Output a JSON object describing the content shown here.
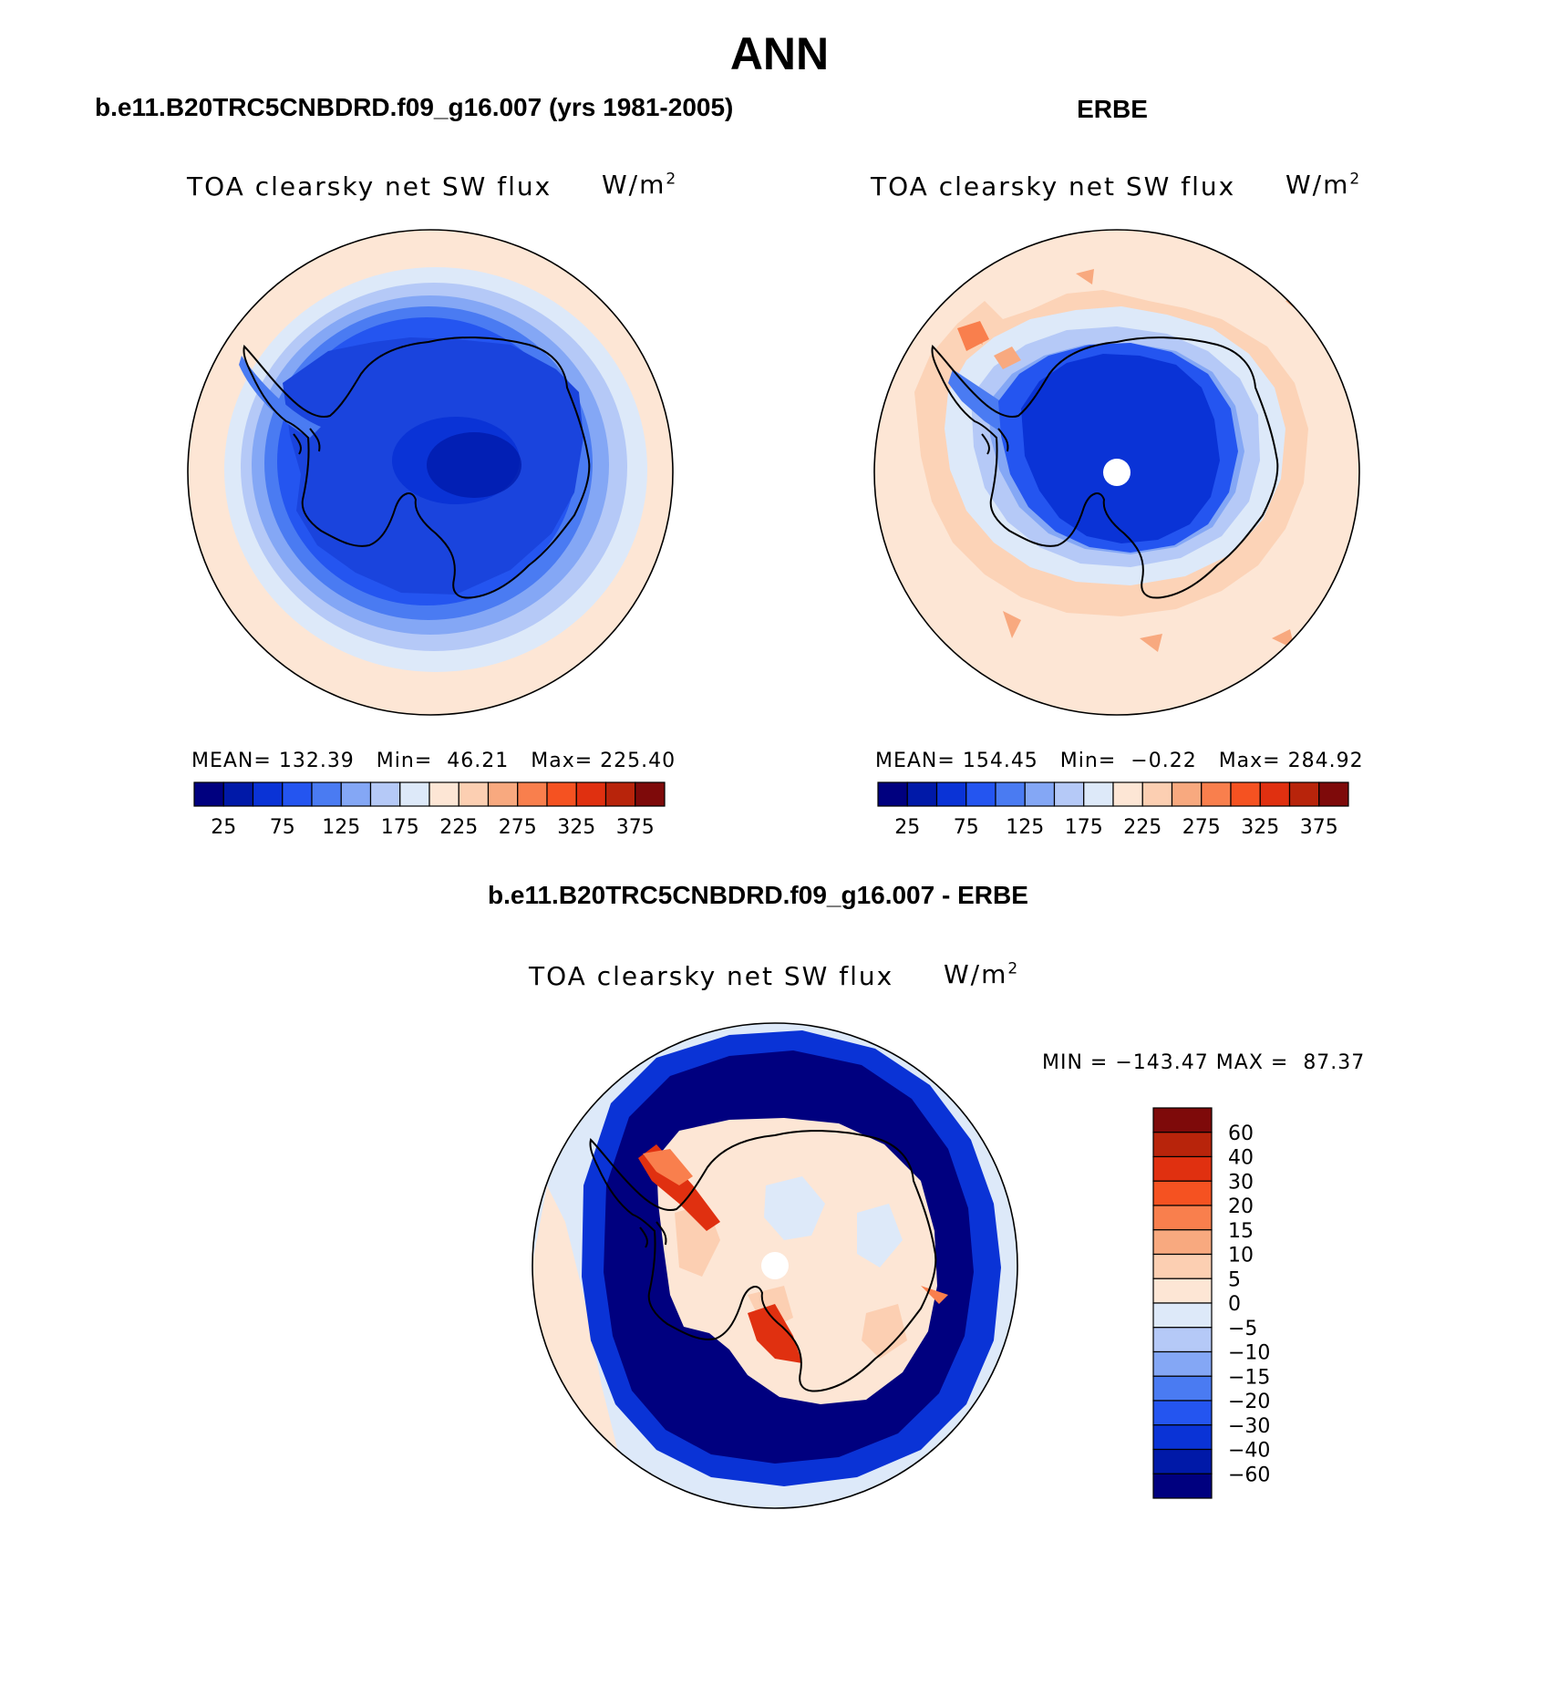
{
  "header": {
    "title": "ANN"
  },
  "panels": [
    {
      "title": "b.e11.B20TRC5CNBDRD.f09_g16.007 (yrs 1981-2005)",
      "variable": "TOA clearsky net SW flux",
      "units": "W/m",
      "units_sup": "2",
      "stats": {
        "mean_label": "MEAN=",
        "mean": "132.39",
        "min_label": "Min=",
        "min": "46.21",
        "max_label": "Max=",
        "max": "225.40"
      }
    },
    {
      "title": "ERBE",
      "variable": "TOA clearsky net SW flux",
      "units": "W/m",
      "units_sup": "2",
      "stats": {
        "mean_label": "MEAN=",
        "mean": "154.45",
        "min_label": "Min=",
        "min": "−0.22",
        "max_label": "Max=",
        "max": "284.92"
      }
    },
    {
      "title": "b.e11.B20TRC5CNBDRD.f09_g16.007 - ERBE",
      "variable": "TOA clearsky net SW flux",
      "units": "W/m",
      "units_sup": "2",
      "stats": {
        "min_label": "MIN =",
        "min": "−143.47",
        "max_label": "MAX =",
        "max": "87.37"
      }
    }
  ],
  "chart_data": [
    {
      "type": "heatmap",
      "projection": "south-polar-stereographic",
      "title": "b.e11.B20TRC5CNBDRD.f09_g16.007 (yrs 1981-2005)",
      "variable": "TOA clearsky net SW flux",
      "units": "W/m^2",
      "mean": 132.39,
      "min": 46.21,
      "max": 225.4,
      "colorbar": {
        "orientation": "horizontal",
        "levels": [
          0,
          25,
          50,
          75,
          100,
          125,
          150,
          175,
          200,
          225,
          250,
          275,
          300,
          325,
          350,
          375,
          400
        ],
        "tick_labels": [
          "25",
          "75",
          "125",
          "175",
          "225",
          "275",
          "325",
          "375"
        ],
        "colors": [
          "#00007f",
          "#0019a8",
          "#0a33d6",
          "#2455f0",
          "#4a7bf2",
          "#84a7f5",
          "#b5c9f7",
          "#dde9f9",
          "#fde6d5",
          "#fccfb2",
          "#f8a97f",
          "#f97f4d",
          "#f55221",
          "#e03010",
          "#b8240b",
          "#7e0a0a"
        ]
      }
    },
    {
      "type": "heatmap",
      "projection": "south-polar-stereographic",
      "title": "ERBE",
      "variable": "TOA clearsky net SW flux",
      "units": "W/m^2",
      "mean": 154.45,
      "min": -0.22,
      "max": 284.92,
      "colorbar": {
        "orientation": "horizontal",
        "levels": [
          0,
          25,
          50,
          75,
          100,
          125,
          150,
          175,
          200,
          225,
          250,
          275,
          300,
          325,
          350,
          375,
          400
        ],
        "tick_labels": [
          "25",
          "75",
          "125",
          "175",
          "225",
          "275",
          "325",
          "375"
        ],
        "colors": [
          "#00007f",
          "#0019a8",
          "#0a33d6",
          "#2455f0",
          "#4a7bf2",
          "#84a7f5",
          "#b5c9f7",
          "#dde9f9",
          "#fde6d5",
          "#fccfb2",
          "#f8a97f",
          "#f97f4d",
          "#f55221",
          "#e03010",
          "#b8240b",
          "#7e0a0a"
        ]
      }
    },
    {
      "type": "heatmap",
      "projection": "south-polar-stereographic",
      "title": "b.e11.B20TRC5CNBDRD.f09_g16.007 - ERBE",
      "variable": "TOA clearsky net SW flux",
      "units": "W/m^2",
      "min": -143.47,
      "max": 87.37,
      "colorbar": {
        "orientation": "vertical",
        "tick_labels": [
          "60",
          "40",
          "30",
          "20",
          "15",
          "10",
          "5",
          "0",
          "−5",
          "−10",
          "−15",
          "−20",
          "−30",
          "−40",
          "−60"
        ],
        "colors": [
          "#7e0a0a",
          "#b8240b",
          "#e03010",
          "#f55221",
          "#f97f4d",
          "#f8a97f",
          "#fccfb2",
          "#fde6d5",
          "#dde9f9",
          "#b5c9f7",
          "#84a7f5",
          "#4a7bf2",
          "#2455f0",
          "#0a33d6",
          "#0019a8",
          "#00007f"
        ]
      }
    }
  ]
}
